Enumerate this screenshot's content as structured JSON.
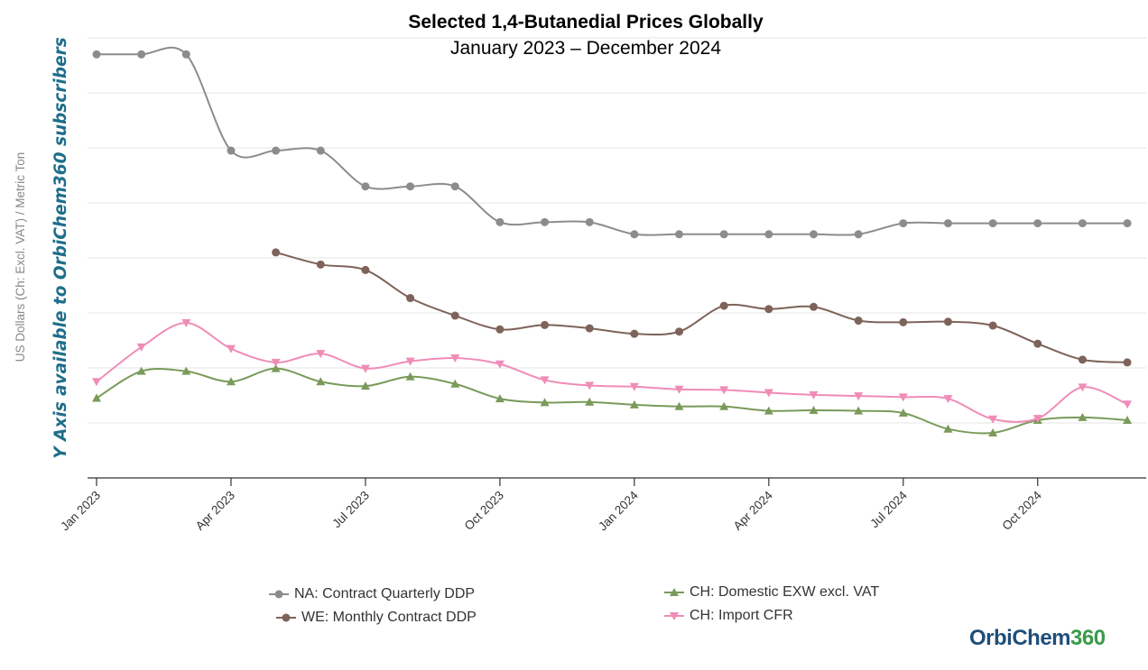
{
  "chart_data": {
    "type": "line",
    "title": "Selected 1,4-Butanedial Prices Globally",
    "subtitle": "January 2023 – December 2024",
    "ylabel": "US Dollars (Ch: Excl. VAT) / Metric Ton",
    "watermark": "Y Axis available to OrbiChem360 subscribers",
    "y_axis_values_shown": false,
    "ylim": [
      0,
      8
    ],
    "xlim": [
      0,
      23.2
    ],
    "x_tick_labels": [
      "Jan 2023",
      "Apr 2023",
      "Jul 2023",
      "Oct 2023",
      "Jan 2024",
      "Apr 2024",
      "Jul 2024",
      "Oct 2024"
    ],
    "x_tick_positions": [
      0,
      3,
      6,
      9,
      12,
      15,
      18,
      21
    ],
    "grid": true,
    "series": [
      {
        "name": "NA: Contract Quarterly DDP",
        "color": "#8c8c8c",
        "marker": "circle",
        "x": [
          0,
          1,
          2,
          3,
          4,
          5,
          6,
          7,
          8,
          9,
          10,
          11,
          12,
          13,
          14,
          15,
          16,
          17,
          18,
          19,
          20,
          21,
          22,
          23
        ],
        "values": [
          7.7,
          7.7,
          7.7,
          5.95,
          5.95,
          5.95,
          5.3,
          5.3,
          5.3,
          4.65,
          4.65,
          4.65,
          4.43,
          4.43,
          4.43,
          4.43,
          4.43,
          4.43,
          4.63,
          4.63,
          4.63,
          4.63,
          4.63,
          4.63
        ]
      },
      {
        "name": "WE: Monthly Contract DDP",
        "color": "#7d6359",
        "marker": "circle",
        "x": [
          4,
          5,
          6,
          7,
          8,
          9,
          10,
          11,
          12,
          13,
          14,
          15,
          16,
          17,
          18,
          19,
          20,
          21,
          22,
          23
        ],
        "values": [
          4.1,
          3.88,
          3.78,
          3.27,
          2.95,
          2.7,
          2.78,
          2.72,
          2.62,
          2.66,
          3.13,
          3.07,
          3.11,
          2.86,
          2.83,
          2.84,
          2.77,
          2.44,
          2.15,
          2.1
        ]
      },
      {
        "name": "CH: Domestic EXW excl. VAT",
        "color": "#7a9a5a",
        "marker": "triangle-up",
        "x": [
          0,
          1,
          2,
          3,
          4,
          5,
          6,
          7,
          8,
          9,
          10,
          11,
          12,
          13,
          14,
          15,
          16,
          17,
          18,
          19,
          20,
          21,
          22,
          23
        ],
        "values": [
          1.45,
          1.94,
          1.94,
          1.75,
          1.99,
          1.75,
          1.67,
          1.84,
          1.71,
          1.44,
          1.37,
          1.38,
          1.33,
          1.3,
          1.3,
          1.22,
          1.23,
          1.22,
          1.18,
          0.89,
          0.82,
          1.05,
          1.1,
          1.05
        ]
      },
      {
        "name": "CH: Import CFR",
        "color": "#f08cb8",
        "marker": "triangle-down",
        "x": [
          0,
          1,
          2,
          3,
          4,
          5,
          6,
          7,
          8,
          9,
          10,
          11,
          12,
          13,
          14,
          15,
          16,
          17,
          18,
          19,
          20,
          21,
          22,
          23
        ],
        "values": [
          1.75,
          2.38,
          2.82,
          2.35,
          2.1,
          2.26,
          1.99,
          2.12,
          2.18,
          2.07,
          1.78,
          1.68,
          1.66,
          1.61,
          1.6,
          1.55,
          1.51,
          1.49,
          1.47,
          1.44,
          1.07,
          1.08,
          1.65,
          1.34
        ]
      }
    ]
  },
  "legend": {
    "na": "NA: Contract Quarterly DDP",
    "we": "WE: Monthly Contract DDP",
    "ch_domestic": "CH: Domestic EXW excl. VAT",
    "ch_import": "CH: Import CFR"
  },
  "logo": {
    "text": "OrbiChem",
    "num": "360"
  }
}
